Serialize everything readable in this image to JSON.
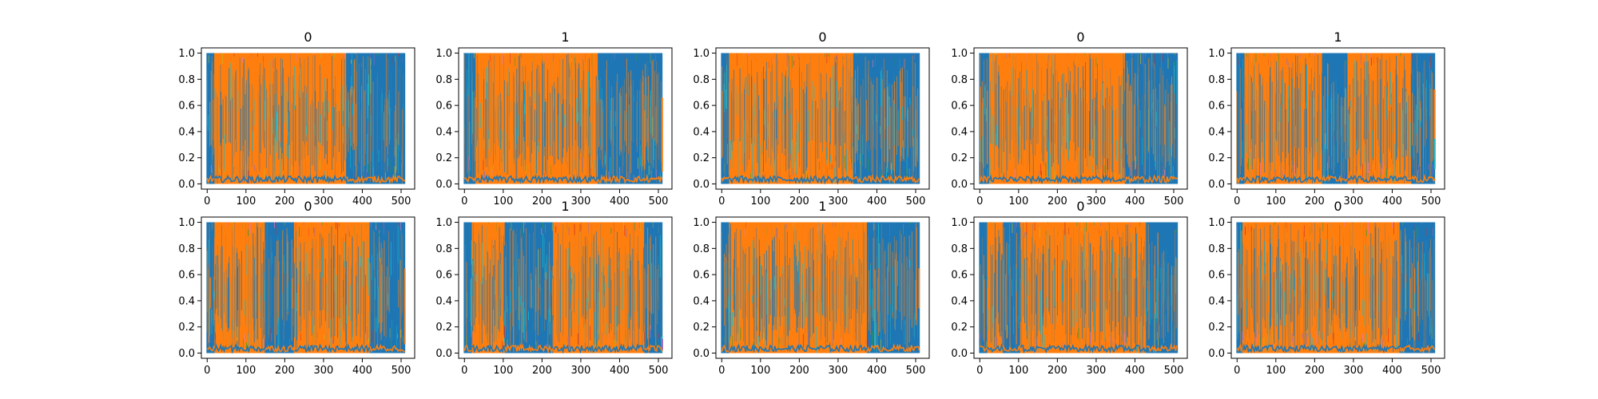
{
  "chart_data": [
    {
      "type": "line",
      "title": "0",
      "xlim": [
        -15,
        535
      ],
      "ylim": [
        -0.04,
        1.04
      ],
      "xticks": [
        0,
        100,
        200,
        300,
        400,
        500
      ],
      "yticks": [
        0.0,
        0.2,
        0.4,
        0.6,
        0.8,
        1.0
      ],
      "blocks": [
        {
          "series": "blue",
          "from": 0,
          "to": 20
        },
        {
          "series": "orange",
          "from": 20,
          "to": 360
        },
        {
          "series": "blue",
          "from": 360,
          "to": 510
        }
      ]
    },
    {
      "type": "line",
      "title": "1",
      "xlim": [
        -15,
        535
      ],
      "ylim": [
        -0.04,
        1.04
      ],
      "xticks": [
        0,
        100,
        200,
        300,
        400,
        500
      ],
      "yticks": [
        0.0,
        0.2,
        0.4,
        0.6,
        0.8,
        1.0
      ],
      "blocks": [
        {
          "series": "blue",
          "from": 0,
          "to": 30
        },
        {
          "series": "orange",
          "from": 30,
          "to": 345
        },
        {
          "series": "blue",
          "from": 345,
          "to": 510
        }
      ]
    },
    {
      "type": "line",
      "title": "0",
      "xlim": [
        -15,
        535
      ],
      "ylim": [
        -0.04,
        1.04
      ],
      "xticks": [
        0,
        100,
        200,
        300,
        400,
        500
      ],
      "yticks": [
        0.0,
        0.2,
        0.4,
        0.6,
        0.8,
        1.0
      ],
      "blocks": [
        {
          "series": "blue",
          "from": 0,
          "to": 20
        },
        {
          "series": "orange",
          "from": 20,
          "to": 340
        },
        {
          "series": "blue",
          "from": 340,
          "to": 510
        }
      ]
    },
    {
      "type": "line",
      "title": "0",
      "xlim": [
        -15,
        535
      ],
      "ylim": [
        -0.04,
        1.04
      ],
      "xticks": [
        0,
        100,
        200,
        300,
        400,
        500
      ],
      "yticks": [
        0.0,
        0.2,
        0.4,
        0.6,
        0.8,
        1.0
      ],
      "blocks": [
        {
          "series": "blue",
          "from": 0,
          "to": 25
        },
        {
          "series": "orange",
          "from": 25,
          "to": 375
        },
        {
          "series": "blue",
          "from": 375,
          "to": 510
        }
      ]
    },
    {
      "type": "line",
      "title": "1",
      "xlim": [
        -15,
        535
      ],
      "ylim": [
        -0.04,
        1.04
      ],
      "xticks": [
        0,
        100,
        200,
        300,
        400,
        500
      ],
      "yticks": [
        0.0,
        0.2,
        0.4,
        0.6,
        0.8,
        1.0
      ],
      "blocks": [
        {
          "series": "blue",
          "from": 0,
          "to": 20
        },
        {
          "series": "orange",
          "from": 20,
          "to": 220
        },
        {
          "series": "blue",
          "from": 220,
          "to": 285
        },
        {
          "series": "orange",
          "from": 285,
          "to": 450
        },
        {
          "series": "blue",
          "from": 450,
          "to": 510
        }
      ]
    },
    {
      "type": "line",
      "title": "0",
      "xlim": [
        -15,
        535
      ],
      "ylim": [
        -0.04,
        1.04
      ],
      "xticks": [
        0,
        100,
        200,
        300,
        400,
        500
      ],
      "yticks": [
        0.0,
        0.2,
        0.4,
        0.6,
        0.8,
        1.0
      ],
      "blocks": [
        {
          "series": "blue",
          "from": 0,
          "to": 20
        },
        {
          "series": "orange",
          "from": 20,
          "to": 150
        },
        {
          "series": "blue",
          "from": 150,
          "to": 225
        },
        {
          "series": "orange",
          "from": 225,
          "to": 420
        },
        {
          "series": "blue",
          "from": 420,
          "to": 510
        }
      ]
    },
    {
      "type": "line",
      "title": "1",
      "xlim": [
        -15,
        535
      ],
      "ylim": [
        -0.04,
        1.04
      ],
      "xticks": [
        0,
        100,
        200,
        300,
        400,
        500
      ],
      "yticks": [
        0.0,
        0.2,
        0.4,
        0.6,
        0.8,
        1.0
      ],
      "blocks": [
        {
          "series": "blue",
          "from": 0,
          "to": 20
        },
        {
          "series": "orange",
          "from": 20,
          "to": 105
        },
        {
          "series": "blue",
          "from": 105,
          "to": 230
        },
        {
          "series": "orange",
          "from": 230,
          "to": 465
        },
        {
          "series": "blue",
          "from": 465,
          "to": 510
        }
      ]
    },
    {
      "type": "line",
      "title": "1",
      "xlim": [
        -15,
        535
      ],
      "ylim": [
        -0.04,
        1.04
      ],
      "xticks": [
        0,
        100,
        200,
        300,
        400,
        500
      ],
      "yticks": [
        0.0,
        0.2,
        0.4,
        0.6,
        0.8,
        1.0
      ],
      "blocks": [
        {
          "series": "blue",
          "from": 0,
          "to": 20
        },
        {
          "series": "orange",
          "from": 20,
          "to": 375
        },
        {
          "series": "blue",
          "from": 375,
          "to": 510
        }
      ]
    },
    {
      "type": "line",
      "title": "0",
      "xlim": [
        -15,
        535
      ],
      "ylim": [
        -0.04,
        1.04
      ],
      "xticks": [
        0,
        100,
        200,
        300,
        400,
        500
      ],
      "yticks": [
        0.0,
        0.2,
        0.4,
        0.6,
        0.8,
        1.0
      ],
      "blocks": [
        {
          "series": "blue",
          "from": 0,
          "to": 20
        },
        {
          "series": "orange",
          "from": 20,
          "to": 60
        },
        {
          "series": "blue",
          "from": 60,
          "to": 105
        },
        {
          "series": "orange",
          "from": 105,
          "to": 430
        },
        {
          "series": "blue",
          "from": 430,
          "to": 510
        }
      ]
    },
    {
      "type": "line",
      "title": "0",
      "xlim": [
        -15,
        535
      ],
      "ylim": [
        -0.04,
        1.04
      ],
      "xticks": [
        0,
        100,
        200,
        300,
        400,
        500
      ],
      "yticks": [
        0.0,
        0.2,
        0.4,
        0.6,
        0.8,
        1.0
      ],
      "blocks": [
        {
          "series": "blue",
          "from": 0,
          "to": 15
        },
        {
          "series": "orange",
          "from": 15,
          "to": 420
        },
        {
          "series": "blue",
          "from": 420,
          "to": 510
        }
      ]
    }
  ],
  "colors": {
    "blue": "#1f77b4",
    "orange": "#ff7f0e",
    "cyan": "#17becf",
    "green": "#2ca02c",
    "purple": "#9467bd",
    "olive": "#bcbd22",
    "pink": "#e377c2",
    "red": "#d62728"
  }
}
